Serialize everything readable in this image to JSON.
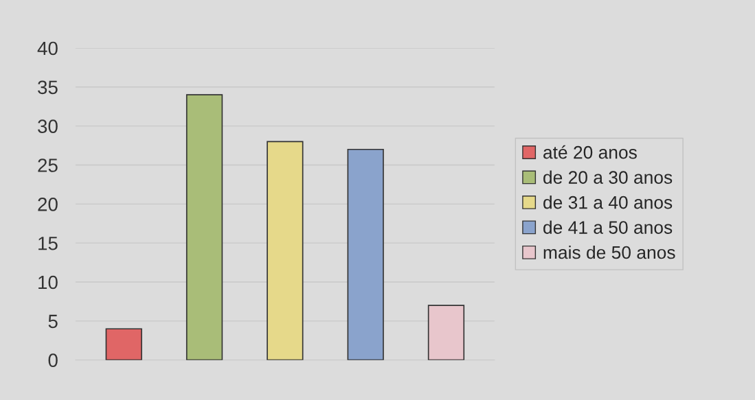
{
  "chart_data": {
    "type": "bar",
    "categories": [
      null,
      null,
      null,
      null,
      null
    ],
    "series": [
      {
        "name": "até 20 anos",
        "color": "#e06666",
        "values": [
          4,
          null,
          null,
          null,
          null
        ]
      },
      {
        "name": "de 20 a 30 anos",
        "color": "#a9bd78",
        "values": [
          null,
          34,
          null,
          null,
          null
        ]
      },
      {
        "name": "de 31 a 40 anos",
        "color": "#e6d98a",
        "values": [
          null,
          null,
          28,
          null,
          null
        ]
      },
      {
        "name": "de 41 a 50 anos",
        "color": "#8aa3cc",
        "values": [
          null,
          null,
          null,
          27,
          null
        ]
      },
      {
        "name": "mais de 50 anos",
        "color": "#e8c6cc",
        "values": [
          null,
          null,
          null,
          null,
          7
        ]
      }
    ],
    "ylim": [
      0,
      40
    ],
    "yticks": [
      0,
      5,
      10,
      15,
      20,
      25,
      30,
      35,
      40
    ],
    "grid": "y",
    "legend": "right"
  }
}
